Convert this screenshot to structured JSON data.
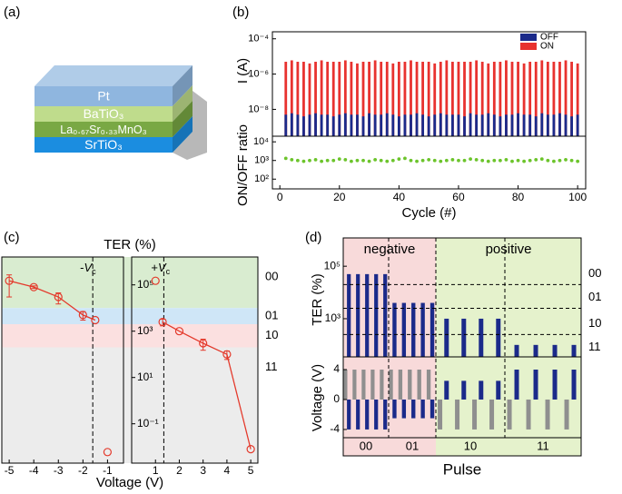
{
  "panel_labels": [
    "(a)",
    "(b)",
    "(c)",
    "(d)"
  ],
  "diagram": {
    "layers": [
      {
        "label": "Pt",
        "color": "#8fb6df"
      },
      {
        "label": "BaTiO₃",
        "color": "#bfdc8c"
      },
      {
        "label": "La₀.₆₇Sr₀.₃₃MnO₃",
        "color": "#79a844"
      },
      {
        "label": "SrTiO₃",
        "color": "#1b8de0"
      }
    ]
  },
  "chart_data": [
    {
      "type": "bar",
      "ylabel": "I (A)",
      "x": [
        2,
        4,
        6,
        8,
        10,
        12,
        14,
        16,
        18,
        20,
        22,
        24,
        26,
        28,
        30,
        32,
        34,
        36,
        38,
        40,
        42,
        44,
        46,
        48,
        50,
        52,
        54,
        56,
        58,
        60,
        62,
        64,
        66,
        68,
        70,
        72,
        74,
        76,
        78,
        80,
        82,
        84,
        86,
        88,
        90,
        92,
        94,
        96,
        98,
        100
      ],
      "xlim": [
        -2.5,
        102.7
      ],
      "ylog": true,
      "ylim": [
        3e-10,
        0.00025
      ],
      "yticks": [
        {
          "value": 0.0001,
          "label": "10⁻⁴"
        },
        {
          "value": 1e-06,
          "label": "10⁻⁶"
        },
        {
          "value": 1e-08,
          "label": "10⁻⁸"
        }
      ],
      "legend": "top-right",
      "series": [
        {
          "name": "OFF",
          "color": "#1b2a8a",
          "values": [
            5e-09,
            6e-09,
            5e-09,
            4e-09,
            5e-09,
            6e-09,
            5e-09,
            5e-09,
            4e-09,
            5e-09,
            6e-09,
            5e-09,
            5e-09,
            4e-09,
            6e-09,
            5e-09,
            5e-09,
            6e-09,
            5e-09,
            4e-09,
            5e-09,
            5e-09,
            6e-09,
            5e-09,
            4e-09,
            5e-09,
            6e-09,
            5e-09,
            5e-09,
            5e-09,
            4e-09,
            6e-09,
            5e-09,
            5e-09,
            6e-09,
            5e-09,
            4e-09,
            5e-09,
            5e-09,
            6e-09,
            5e-09,
            5e-09,
            4e-09,
            6e-09,
            5e-09,
            5e-09,
            6e-09,
            5e-09,
            4e-09,
            5e-09
          ]
        },
        {
          "name": "ON",
          "color": "#e8322f",
          "values": [
            5e-06,
            6e-06,
            5e-06,
            5e-06,
            4e-06,
            5e-06,
            6e-06,
            5e-06,
            5e-06,
            5e-06,
            6e-06,
            5e-06,
            4e-06,
            5e-06,
            5e-06,
            6e-06,
            5e-06,
            5e-06,
            4e-06,
            5e-06,
            5e-06,
            6e-06,
            5e-06,
            5e-06,
            5e-06,
            4e-06,
            5e-06,
            6e-06,
            5e-06,
            5e-06,
            5e-06,
            5e-06,
            6e-06,
            5e-06,
            4e-06,
            5e-06,
            5e-06,
            6e-06,
            5e-06,
            5e-06,
            4e-06,
            5e-06,
            5e-06,
            6e-06,
            5e-06,
            5e-06,
            5e-06,
            6e-06,
            5e-06,
            4e-06
          ]
        }
      ]
    },
    {
      "type": "scatter",
      "ylabel": "ON/OFF ratio",
      "xlabel": "Cycle (#)",
      "x": [
        2,
        4,
        6,
        8,
        10,
        12,
        14,
        16,
        18,
        20,
        22,
        24,
        26,
        28,
        30,
        32,
        34,
        36,
        38,
        40,
        42,
        44,
        46,
        48,
        50,
        52,
        54,
        56,
        58,
        60,
        62,
        64,
        66,
        68,
        70,
        72,
        74,
        76,
        78,
        80,
        82,
        84,
        86,
        88,
        90,
        92,
        94,
        96,
        98,
        100
      ],
      "xlim": [
        -2.5,
        102.7
      ],
      "xticks": [
        0,
        20,
        40,
        60,
        80,
        100
      ],
      "ylog": true,
      "ylim": [
        30,
        20000
      ],
      "yticks": [
        {
          "value": 10000,
          "label": "10⁴"
        },
        {
          "value": 1000,
          "label": "10³"
        },
        {
          "value": 100,
          "label": "10²"
        }
      ],
      "color": "#6cc42b",
      "values": [
        1300,
        1100,
        1000,
        900,
        1000,
        1100,
        900,
        1000,
        1000,
        1200,
        1100,
        900,
        1000,
        1000,
        900,
        1100,
        1000,
        900,
        1000,
        1200,
        1300,
        1000,
        900,
        1000,
        1100,
        1000,
        900,
        1000,
        1100,
        1000,
        1000,
        1200,
        1100,
        1000,
        900,
        1000,
        1000,
        1100,
        900,
        1000,
        900,
        1000,
        1100,
        1200,
        1000,
        900,
        1000,
        1100,
        1000,
        900
      ]
    },
    {
      "type": "line",
      "title": "TER (%)",
      "xlabel": "Voltage (V)",
      "xlim": [
        -5.3,
        -0.35
      ],
      "xticks": [
        -5,
        -4,
        -3,
        -2,
        -1
      ],
      "ylog": true,
      "ylim": [
        0.002,
        1600000
      ],
      "color": "#e4392b",
      "bands": [
        {
          "label": "00",
          "from": 10000,
          "to": 1600000,
          "color": "#d9ecd0"
        },
        {
          "label": "01",
          "from": 2000,
          "to": 10000,
          "color": "#cfe6f7"
        },
        {
          "label": "10",
          "from": 200,
          "to": 2000,
          "color": "#fbe0e0"
        },
        {
          "label": "11",
          "from": 0.002,
          "to": 200,
          "color": "#ececec"
        }
      ],
      "annotation": {
        "text": "-",
        "var": "V",
        "sub": "c",
        "x": -1.6
      },
      "series": [
        {
          "x": [
            -5,
            -4,
            -3,
            -2,
            -1.5
          ],
          "values": [
            150000,
            80000,
            30000,
            5000,
            3000
          ],
          "errors": [
            120000,
            10000,
            15000,
            2000,
            null
          ]
        },
        {
          "x": [
            -1
          ],
          "values": [
            0.006
          ]
        }
      ]
    },
    {
      "type": "line",
      "xlim": [
        0,
        5.3
      ],
      "xticks": [
        1,
        2,
        3,
        4,
        5
      ],
      "ylog": true,
      "ylim": [
        0.002,
        1600000
      ],
      "yticks": [
        {
          "value": 0.1,
          "label": "10⁻¹"
        },
        {
          "value": 10,
          "label": "10¹"
        },
        {
          "value": 1000,
          "label": "10³"
        },
        {
          "value": 100000,
          "label": "10⁵"
        }
      ],
      "color": "#e4392b",
      "annotation": {
        "text": "+",
        "var": "V",
        "sub": "c",
        "x": 1.35
      },
      "series": [
        {
          "x": [
            1.3,
            2,
            3,
            4,
            5
          ],
          "values": [
            2500,
            1000,
            300,
            100,
            0.008
          ],
          "errors": [
            800,
            null,
            150,
            40,
            null
          ]
        },
        {
          "x": [
            1
          ],
          "values": [
            150000
          ]
        }
      ]
    },
    {
      "type": "bar",
      "ylabel": "TER (%)",
      "ylog": true,
      "ylim": [
        35,
        1200000
      ],
      "yticks": [
        {
          "value": 1000,
          "label": "10³"
        },
        {
          "value": 100000,
          "label": "10⁵"
        }
      ],
      "color": "#1b2a8a",
      "thresholds": [
        20000,
        2500,
        250
      ],
      "levels": [
        "00",
        "01",
        "10",
        "11"
      ],
      "headers": [
        {
          "label": "negative",
          "color": "#f8dada",
          "groups": [
            {
              "label": "00",
              "values": [
                50000,
                50000,
                50000,
                50000,
                50000
              ]
            },
            {
              "label": "01",
              "values": [
                4000,
                4000,
                4000,
                4000,
                4000
              ]
            }
          ]
        },
        {
          "label": "positive",
          "color": "#e5f2cc",
          "groups": [
            {
              "label": "10",
              "values": [
                1000,
                1000,
                1000,
                1000
              ]
            },
            {
              "label": "11",
              "values": [
                100,
                100,
                100,
                100
              ]
            }
          ]
        }
      ]
    },
    {
      "type": "bar",
      "ylabel": "Voltage (V)",
      "xlabel": "Pulse",
      "ylim": [
        -5.1,
        5.7
      ],
      "yticks": [
        -4,
        0,
        4
      ],
      "series": [
        {
          "color": "#1b2a8a",
          "values": [
            -4,
            -4,
            -4,
            -4,
            -4,
            -2.5,
            -2.5,
            -2.5,
            -2.5,
            -2.5,
            2.5,
            2.5,
            2.5,
            2.5,
            4,
            4,
            4,
            4
          ]
        },
        {
          "color": "#8f8f8f",
          "values": [
            4,
            4,
            4,
            4,
            4,
            4,
            4,
            4,
            4,
            4,
            -4,
            -4,
            -4,
            -4,
            -4,
            -4,
            -4,
            -4
          ]
        }
      ]
    }
  ]
}
